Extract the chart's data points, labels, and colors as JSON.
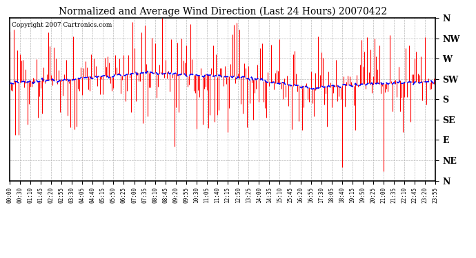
{
  "title": "Normalized and Average Wind Direction (Last 24 Hours) 20070422",
  "copyright": "Copyright 2007 Cartronics.com",
  "background_color": "#ffffff",
  "plot_bg_color": "#ffffff",
  "grid_color": "#b0b0b0",
  "red_color": "#ff0000",
  "blue_color": "#0000ff",
  "ytick_labels": [
    "N",
    "NW",
    "W",
    "SW",
    "S",
    "SE",
    "E",
    "NE",
    "N"
  ],
  "ytick_values": [
    360,
    315,
    270,
    225,
    180,
    135,
    90,
    45,
    0
  ],
  "xtick_labels": [
    "00:00",
    "00:30",
    "01:10",
    "01:45",
    "02:20",
    "02:55",
    "03:30",
    "04:05",
    "04:40",
    "05:15",
    "05:50",
    "06:25",
    "07:00",
    "07:35",
    "08:10",
    "08:45",
    "09:20",
    "09:55",
    "10:30",
    "11:05",
    "11:40",
    "12:15",
    "12:50",
    "13:25",
    "14:00",
    "14:35",
    "15:10",
    "15:45",
    "16:20",
    "16:55",
    "17:30",
    "18:05",
    "18:40",
    "19:15",
    "19:50",
    "20:25",
    "21:00",
    "21:35",
    "22:10",
    "22:45",
    "23:20",
    "23:55"
  ],
  "ylim": [
    0,
    360
  ],
  "n_points": 288,
  "avg_base": 225,
  "red_seed": 12345
}
